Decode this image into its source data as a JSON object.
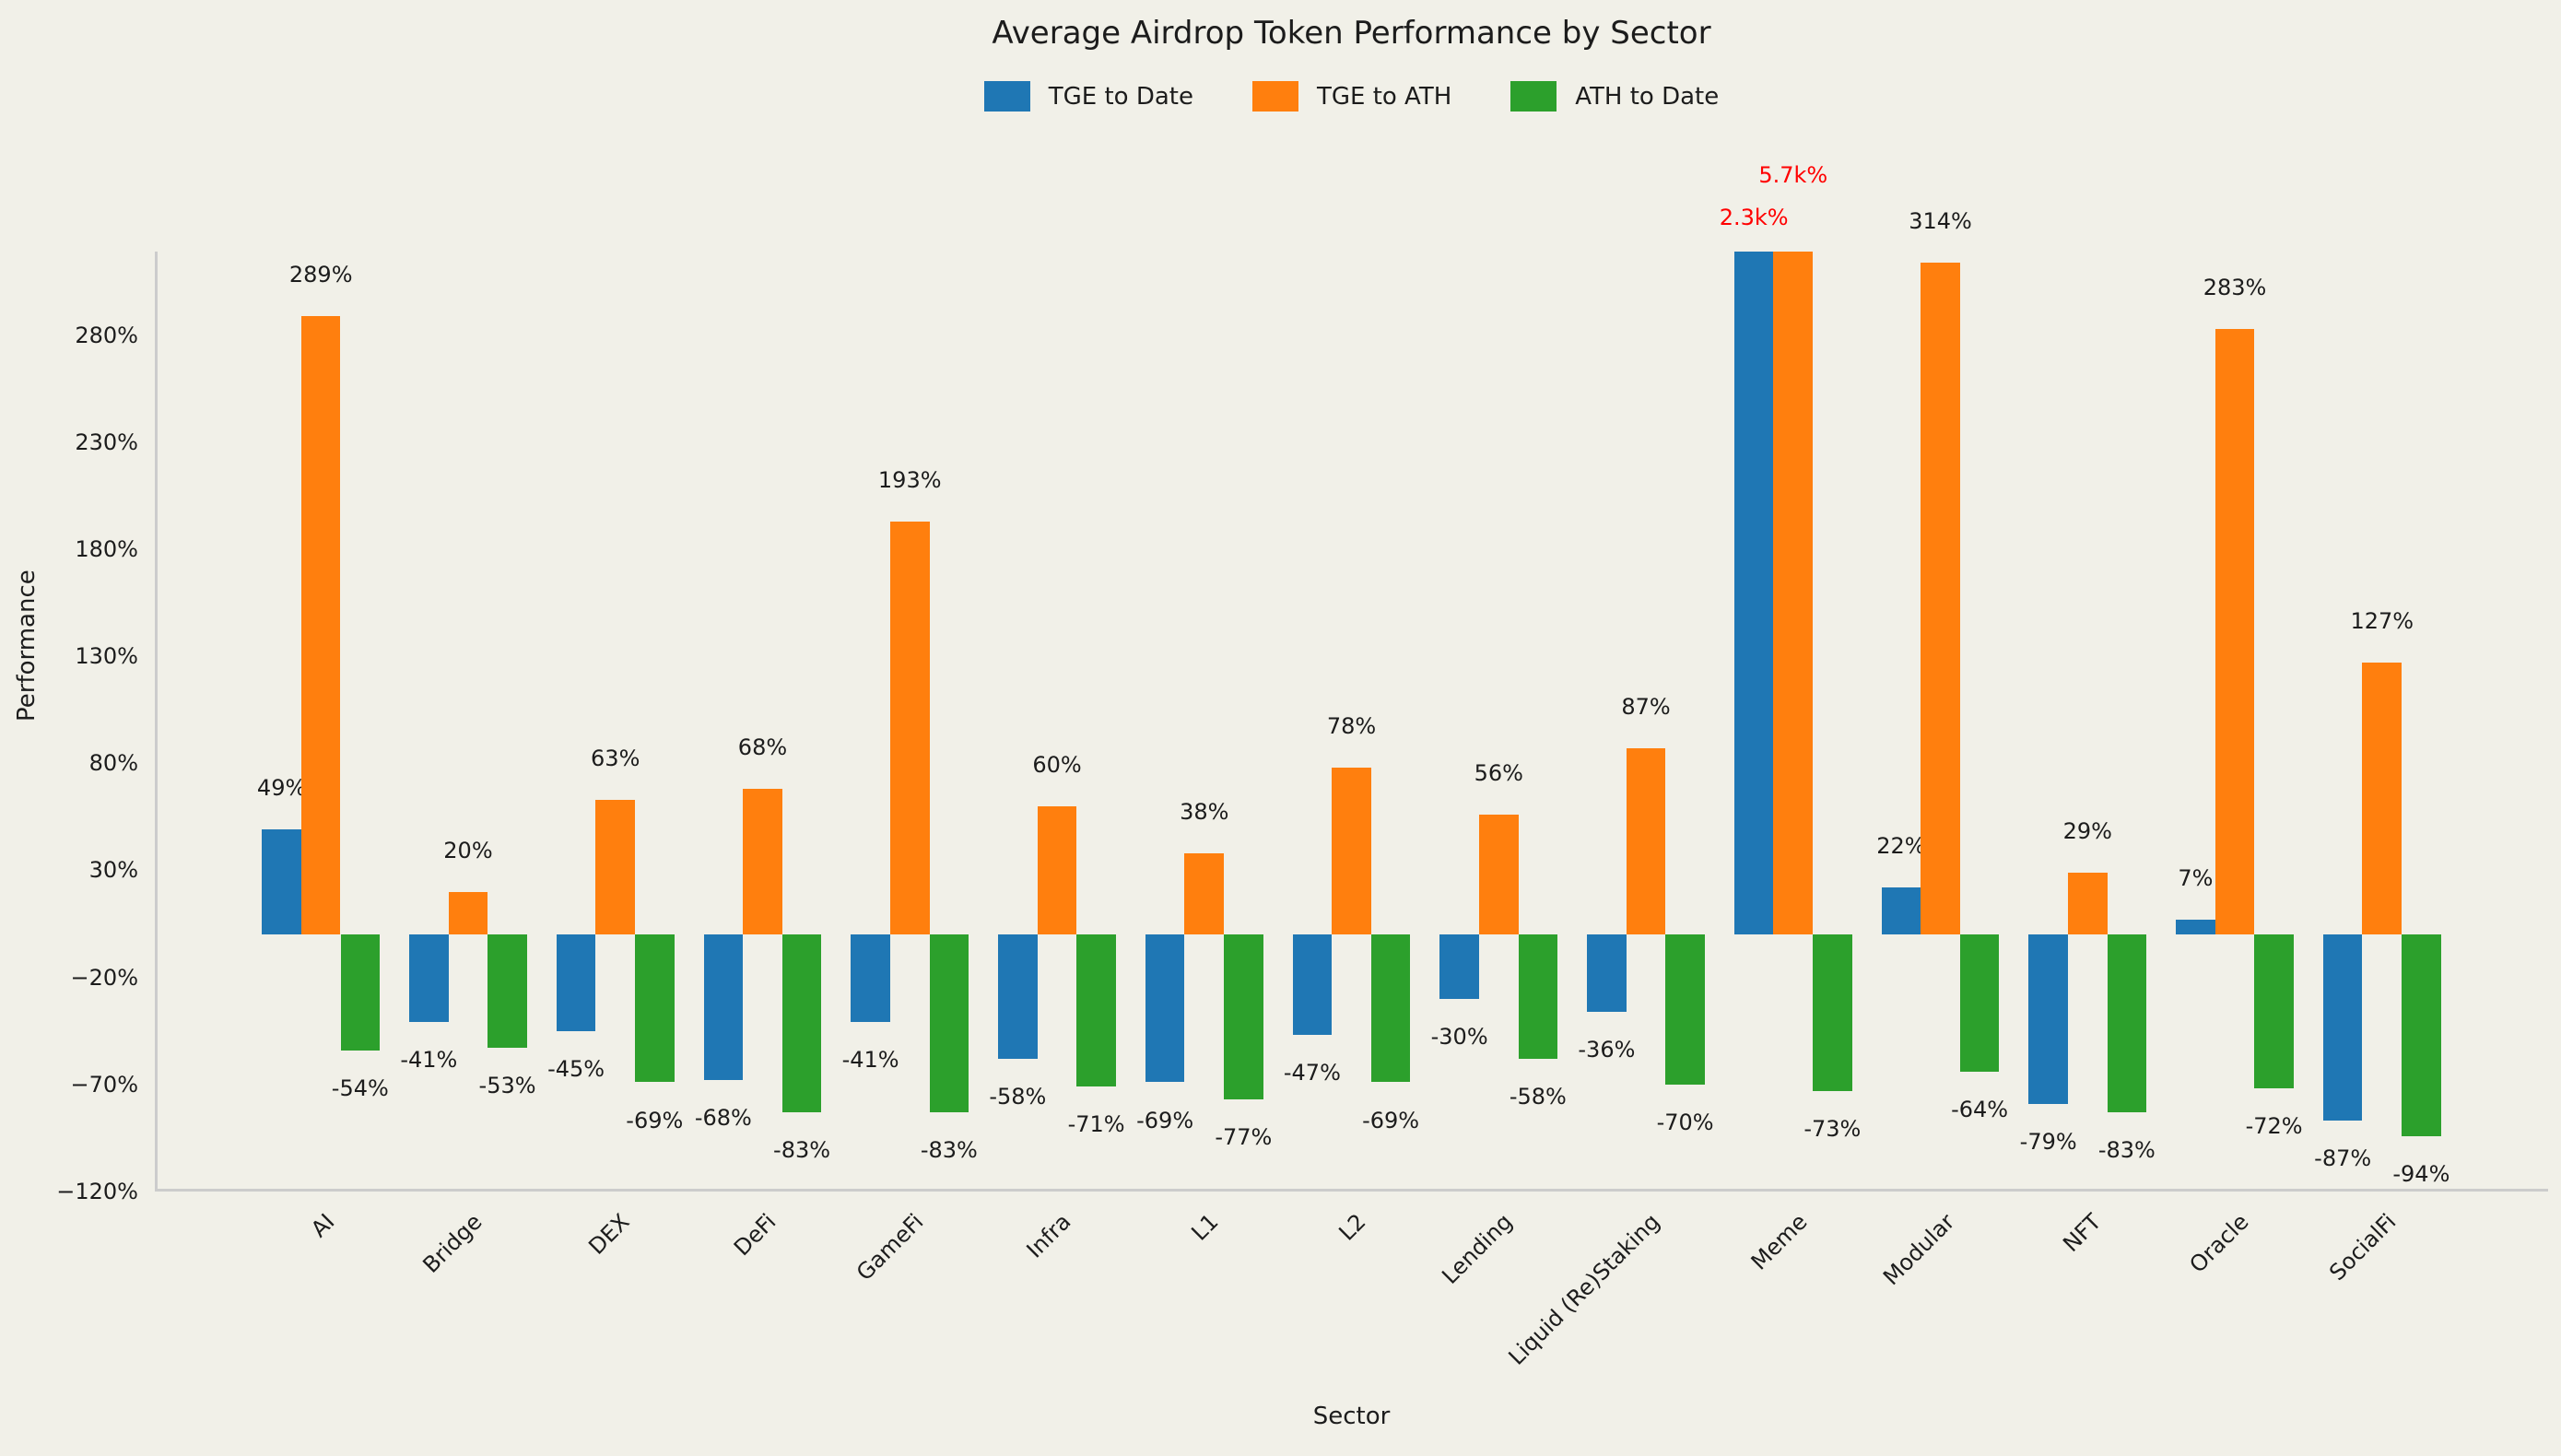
{
  "title": "Average Airdrop Token Performance by Sector",
  "axes": {
    "ylabel": "Performance",
    "xlabel": "Sector",
    "yticks": [
      {
        "v": 280,
        "label": "280%"
      },
      {
        "v": 230,
        "label": "230%"
      },
      {
        "v": 180,
        "label": "180%"
      },
      {
        "v": 130,
        "label": "130%"
      },
      {
        "v": 80,
        "label": "80%"
      },
      {
        "v": 30,
        "label": "30%"
      },
      {
        "v": -20,
        "label": "−20%"
      },
      {
        "v": -70,
        "label": "−70%"
      },
      {
        "v": -120,
        "label": "−120%"
      }
    ]
  },
  "colors": {
    "background": "#f1f0e8",
    "text": "#1c1c1c",
    "spine": "#cccccc",
    "clipped_label": "#ff0000"
  },
  "chart_data": {
    "type": "bar",
    "title": "Average Airdrop Token Performance by Sector",
    "xlabel": "Sector",
    "ylabel": "Performance",
    "ylim": [
      -120,
      319
    ],
    "grid": false,
    "legend_position": "top-center",
    "categories": [
      "AI",
      "Bridge",
      "DEX",
      "DeFi",
      "GameFi",
      "Infra",
      "L1",
      "L2",
      "Lending",
      "Liquid (Re)Staking",
      "Meme",
      "Modular",
      "NFT",
      "Oracle",
      "SocialFi"
    ],
    "series": [
      {
        "name": "TGE to Date",
        "color": "#1f77b4",
        "values": [
          49,
          -41,
          -45,
          -68,
          -41,
          -58,
          -69,
          -47,
          -30,
          -36,
          2300,
          22,
          -79,
          7,
          -87
        ],
        "labels": [
          "49%",
          "-41%",
          "-45%",
          "-68%",
          "-41%",
          "-58%",
          "-69%",
          "-47%",
          "-30%",
          "-36%",
          "2.3k%",
          "22%",
          "-79%",
          "7%",
          "-87%"
        ]
      },
      {
        "name": "TGE to ATH",
        "color": "#ff7f0e",
        "values": [
          289,
          20,
          63,
          68,
          193,
          60,
          38,
          78,
          56,
          87,
          5700,
          314,
          29,
          283,
          127
        ],
        "labels": [
          "289%",
          "20%",
          "63%",
          "68%",
          "193%",
          "60%",
          "38%",
          "78%",
          "56%",
          "87%",
          "5.7k%",
          "314%",
          "29%",
          "283%",
          "127%"
        ]
      },
      {
        "name": "ATH to Date",
        "color": "#2ca02c",
        "values": [
          -54,
          -53,
          -69,
          -83,
          -83,
          -71,
          -77,
          -69,
          -58,
          -70,
          -73,
          -64,
          -83,
          -72,
          -94
        ],
        "labels": [
          "-54%",
          "-53%",
          "-69%",
          "-83%",
          "-83%",
          "-71%",
          "-77%",
          "-69%",
          "-58%",
          "-70%",
          "-73%",
          "-64%",
          "-83%",
          "-72%",
          "-94%"
        ]
      }
    ]
  }
}
